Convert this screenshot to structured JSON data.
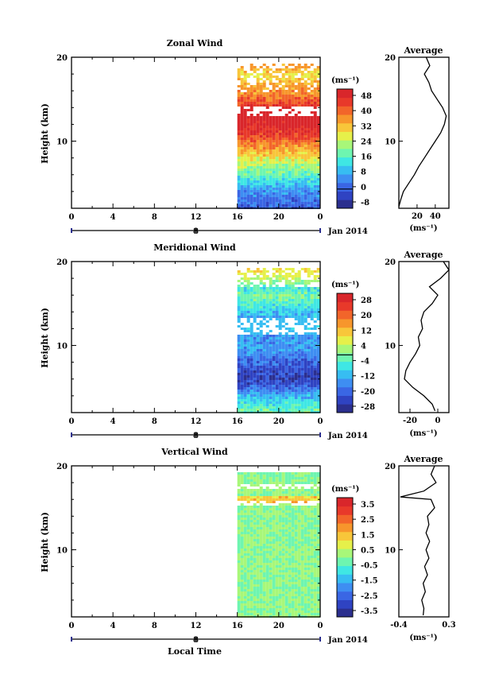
{
  "figure": {
    "xlabel": "Local Time",
    "colors": {
      "ramp": [
        "#2b2f8e",
        "#2f43c2",
        "#3a66e4",
        "#3e8ef2",
        "#37bdf2",
        "#3fe7e4",
        "#6ef5b0",
        "#a8f779",
        "#e6f04a",
        "#f8c63a",
        "#f7962c",
        "#f2652a",
        "#e8392a",
        "#d9262b"
      ]
    }
  },
  "chart_data": [
    {
      "type": "heatmap",
      "title": "Zonal Wind",
      "ylabel": "Height (km)",
      "yticks": [
        20,
        10
      ],
      "ylim": [
        2,
        20
      ],
      "xticks": [
        "0",
        "4",
        "8",
        "12",
        "16",
        "20",
        "0"
      ],
      "xlim": [
        0,
        24
      ],
      "date_marker": "8",
      "date_label": "Jan 2014",
      "data_start_hour": 16,
      "colorbar": {
        "unit": "(ms⁻¹)",
        "ticks": [
          "48",
          "40",
          "32",
          "24",
          "16",
          "8",
          "0",
          "-8"
        ],
        "range": [
          -10,
          52
        ],
        "zero_line": 0
      },
      "profile_levels": [
        {
          "h": 20.0,
          "v": 30
        },
        {
          "h": 19.0,
          "v": 34
        },
        {
          "h": 18.0,
          "v": 28
        },
        {
          "h": 17.0,
          "v": 33
        },
        {
          "h": 16.0,
          "v": 36
        },
        {
          "h": 15.0,
          "v": 42
        },
        {
          "h": 14.0,
          "v": 48
        },
        {
          "h": 13.0,
          "v": 52
        },
        {
          "h": 12.0,
          "v": 50
        },
        {
          "h": 11.0,
          "v": 46
        },
        {
          "h": 10.0,
          "v": 40
        },
        {
          "h": 9.0,
          "v": 34
        },
        {
          "h": 8.0,
          "v": 28
        },
        {
          "h": 7.0,
          "v": 22
        },
        {
          "h": 6.0,
          "v": 17
        },
        {
          "h": 5.0,
          "v": 11
        },
        {
          "h": 4.0,
          "v": 5
        },
        {
          "h": 3.0,
          "v": 2
        },
        {
          "h": 2.2,
          "v": 0
        }
      ],
      "profile": {
        "title": "Average",
        "xticks": [
          "20",
          "40"
        ],
        "xtick_values": [
          20,
          40
        ],
        "xlim": [
          0,
          55
        ],
        "xlabel": "(ms⁻¹)"
      }
    },
    {
      "type": "heatmap",
      "title": "Meridional Wind",
      "ylabel": "Height (km)",
      "yticks": [
        20,
        10
      ],
      "ylim": [
        2,
        20
      ],
      "xticks": [
        "0",
        "4",
        "8",
        "12",
        "16",
        "20",
        "0"
      ],
      "xlim": [
        0,
        24
      ],
      "date_marker": "8",
      "date_label": "Jan 2014",
      "data_start_hour": 16,
      "colorbar": {
        "unit": "(ms⁻¹)",
        "ticks": [
          "28",
          "20",
          "12",
          "4",
          "-4",
          "-12",
          "-20",
          "-28"
        ],
        "range": [
          -30,
          32
        ],
        "zero_line": 0
      },
      "profile_levels": [
        {
          "h": 20.0,
          "v": 4
        },
        {
          "h": 19.0,
          "v": 8
        },
        {
          "h": 18.0,
          "v": 2
        },
        {
          "h": 17.0,
          "v": -6
        },
        {
          "h": 16.0,
          "v": 0
        },
        {
          "h": 15.0,
          "v": -4
        },
        {
          "h": 14.0,
          "v": -10
        },
        {
          "h": 13.0,
          "v": -12
        },
        {
          "h": 12.0,
          "v": -11
        },
        {
          "h": 11.0,
          "v": -14
        },
        {
          "h": 10.0,
          "v": -13
        },
        {
          "h": 9.0,
          "v": -16
        },
        {
          "h": 8.0,
          "v": -20
        },
        {
          "h": 7.0,
          "v": -23
        },
        {
          "h": 6.0,
          "v": -24
        },
        {
          "h": 5.0,
          "v": -18
        },
        {
          "h": 4.0,
          "v": -10
        },
        {
          "h": 3.0,
          "v": -4
        },
        {
          "h": 2.2,
          "v": -2
        }
      ],
      "profile": {
        "title": "Average",
        "xticks": [
          "-20",
          "0"
        ],
        "xtick_values": [
          -20,
          0
        ],
        "xlim": [
          -28,
          8
        ],
        "xlabel": "(ms⁻¹)"
      }
    },
    {
      "type": "heatmap",
      "title": "Vertical Wind",
      "ylabel": "Height (km)",
      "yticks": [
        20,
        10
      ],
      "ylim": [
        2,
        20
      ],
      "xticks": [
        "0",
        "4",
        "8",
        "12",
        "16",
        "20",
        "0"
      ],
      "xlim": [
        0,
        24
      ],
      "date_marker": "8",
      "date_label": "Jan 2014",
      "data_start_hour": 16,
      "colorbar": {
        "unit": "(ms⁻¹)",
        "ticks": [
          "3.5",
          "2.5",
          "1.5",
          "0.5",
          "-0.5",
          "-1.5",
          "-2.5",
          "-3.5"
        ],
        "range": [
          -4,
          4
        ]
      },
      "profile_levels": [
        {
          "h": 20.0,
          "v": 0.1
        },
        {
          "h": 19.0,
          "v": 0.05
        },
        {
          "h": 18.0,
          "v": 0.12
        },
        {
          "h": 17.0,
          "v": -0.05
        },
        {
          "h": 16.3,
          "v": -0.38
        },
        {
          "h": 16.0,
          "v": 0.05
        },
        {
          "h": 15.0,
          "v": 0.1
        },
        {
          "h": 14.0,
          "v": 0.0
        },
        {
          "h": 13.0,
          "v": 0.02
        },
        {
          "h": 12.0,
          "v": -0.02
        },
        {
          "h": 11.0,
          "v": 0.03
        },
        {
          "h": 10.0,
          "v": -0.02
        },
        {
          "h": 9.0,
          "v": 0.02
        },
        {
          "h": 8.0,
          "v": -0.04
        },
        {
          "h": 7.0,
          "v": 0.0
        },
        {
          "h": 6.0,
          "v": -0.06
        },
        {
          "h": 5.0,
          "v": -0.03
        },
        {
          "h": 4.0,
          "v": -0.08
        },
        {
          "h": 3.0,
          "v": -0.05
        },
        {
          "h": 2.2,
          "v": -0.06
        }
      ],
      "profile": {
        "title": "Average",
        "xticks": [
          "-0.4",
          "0.3"
        ],
        "xtick_values": [
          -0.4,
          0.3
        ],
        "xlim": [
          -0.4,
          0.3
        ],
        "xlabel": "(ms⁻¹)"
      }
    }
  ]
}
